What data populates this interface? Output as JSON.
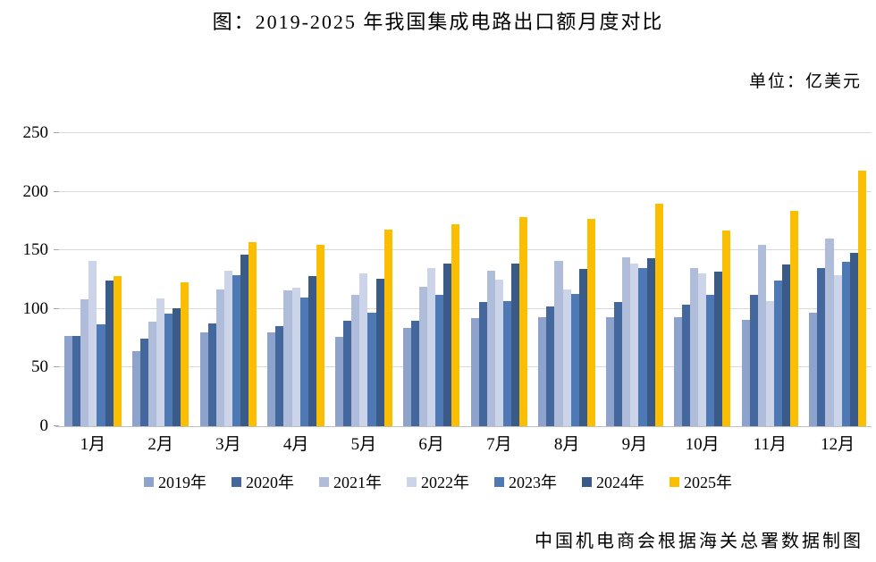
{
  "page": {
    "title": "图：2019-2025 年我国集成电路出口额月度对比",
    "unit_label": "单位：亿美元",
    "source_note": "中国机电商会根据海关总署数据制图"
  },
  "chart_data": {
    "type": "bar",
    "title": "图：2019-2025 年我国集成电路出口额月度对比",
    "ylabel": "亿美元",
    "xlabel": "",
    "grid": true,
    "legend_position": "bottom",
    "ylim": [
      0,
      250
    ],
    "y_ticks": [
      0,
      50,
      100,
      150,
      200,
      250
    ],
    "categories": [
      "1月",
      "2月",
      "3月",
      "4月",
      "5月",
      "6月",
      "7月",
      "8月",
      "9月",
      "10月",
      "11月",
      "12月"
    ],
    "series": [
      {
        "name": "2019年",
        "color": "#8EA3CC",
        "values": [
          77,
          64,
          80,
          80,
          76,
          84,
          92,
          93,
          93,
          93,
          91,
          97
        ]
      },
      {
        "name": "2020年",
        "color": "#44689D",
        "values": [
          77,
          75,
          88,
          85,
          90,
          90,
          106,
          102,
          106,
          104,
          112,
          135
        ]
      },
      {
        "name": "2021年",
        "color": "#AFBDDB",
        "values": [
          108,
          89,
          117,
          116,
          112,
          119,
          133,
          141,
          144,
          135,
          155,
          160
        ]
      },
      {
        "name": "2022年",
        "color": "#CCD4E9",
        "values": [
          141,
          109,
          133,
          118,
          130,
          135,
          125,
          117,
          139,
          130,
          107,
          129
        ]
      },
      {
        "name": "2023年",
        "color": "#4E79B5",
        "values": [
          87,
          96,
          129,
          110,
          97,
          112,
          107,
          113,
          135,
          112,
          124,
          140
        ]
      },
      {
        "name": "2024年",
        "color": "#3A5A88",
        "values": [
          124,
          101,
          146,
          128,
          126,
          139,
          139,
          134,
          143,
          132,
          138,
          148
        ]
      },
      {
        "name": "2025年",
        "color": "#FBBE00",
        "values": [
          128,
          123,
          157,
          155,
          168,
          172,
          178,
          177,
          190,
          167,
          184,
          218
        ]
      }
    ]
  }
}
